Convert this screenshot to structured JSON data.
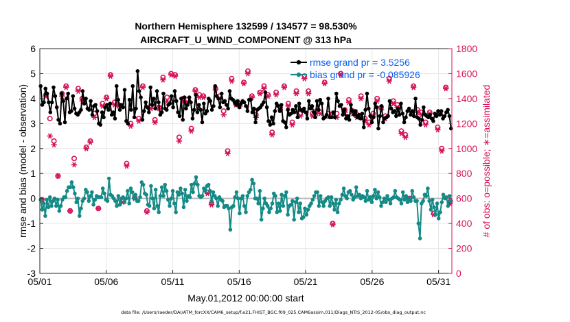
{
  "chart_data": {
    "type": "line",
    "title": "Northern Hemisphere 132599 / 134577 = 98.530%",
    "subtitle": "AIRCRAFT_U_WIND_COMPONENT @ 313 hPa",
    "xlabel": "May.01,2012 00:00:00 start",
    "ylabel_left": "rmse and bias (model - observation)",
    "ylabel_right": "# of obs: o=possible; ∗=assimilated",
    "footnote": "data file: /Users/raeder/DAI/ATM_forcXX/CAM6_setup/f.e21.FHIST_BGC.f09_025.CAM6assim.011/Diags_NTrS_2012-05/obs_diag_output.nc",
    "x_tick_labels": [
      "05/01",
      "05/06",
      "05/11",
      "05/16",
      "05/21",
      "05/26",
      "05/31"
    ],
    "x_tick_days": [
      0,
      5,
      10,
      15,
      20,
      25,
      30
    ],
    "xlim_days": [
      0,
      31
    ],
    "ylim_left": [
      -3,
      6
    ],
    "yticks_left": [
      "-3",
      "-2",
      "-1",
      "0",
      "1",
      "2",
      "3",
      "4",
      "5",
      "6"
    ],
    "ylim_right": [
      0,
      1800
    ],
    "yticks_right": [
      "0",
      "200",
      "400",
      "600",
      "800",
      "1000",
      "1200",
      "1400",
      "1600",
      "1800"
    ],
    "grid": true,
    "legend_position": "top-right",
    "colors": {
      "rmse": "#000000",
      "bias": "#138a86",
      "obs": "#d6135a",
      "legend_text": "#0a5ef0",
      "zero_line": "#b8b8b8"
    },
    "series": [
      {
        "name": "rmse grand pr = 3.5256",
        "axis": "left",
        "values": [
          4.5,
          3.75,
          3.85,
          4.4,
          4.2,
          3.85,
          3.45,
          3.85,
          4.45,
          4.1,
          3.65,
          3.15,
          3.0,
          4.2,
          3.9,
          3.05,
          4.0,
          4.2,
          3.45,
          3.5,
          4.1,
          3.6,
          3.4,
          3.35,
          3.45,
          3.55,
          4.3,
          3.8,
          4.0,
          3.6,
          3.55,
          3.9,
          3.35,
          3.7,
          3.75,
          3.5,
          3.0,
          2.95,
          3.45,
          3.25,
          3.65,
          3.75,
          3.55,
          3.8,
          3.35,
          3.45,
          3.2,
          4.5,
          3.95,
          3.55,
          3.75,
          3.65,
          4.35,
          3.1,
          3.0,
          3.95,
          3.55,
          4.5,
          3.25,
          3.6,
          5.1,
          4.3,
          4.05,
          3.15,
          3.5,
          3.85,
          3.65,
          3.45,
          4.45,
          3.75,
          4.0,
          3.6,
          4.3,
          3.85,
          3.35,
          3.45,
          4.2,
          3.6,
          3.55,
          3.75,
          3.8,
          4.1,
          3.65,
          4.3,
          3.9,
          3.45,
          3.3,
          4.0,
          3.15,
          4.05,
          3.6,
          3.75,
          4.05,
          3.85,
          3.2,
          3.55,
          4.15,
          3.45,
          3.75,
          3.55,
          3.05,
          3.8,
          3.4,
          3.5,
          4.0,
          3.9,
          3.55,
          3.7,
          4.5,
          4.1,
          4.0,
          3.65,
          4.2,
          3.85,
          3.9,
          3.75,
          3.6,
          4.3,
          4.0,
          3.95,
          3.85,
          3.75,
          3.9,
          3.65,
          3.8,
          3.9,
          3.85,
          3.7,
          3.5,
          3.95,
          3.95,
          3.45,
          3.6,
          3.05,
          3.55,
          3.6,
          3.65,
          3.75,
          3.85,
          4.25,
          3.65,
          3.1,
          2.95,
          3.25,
          3.0,
          3.5,
          3.8,
          3.7,
          3.5,
          3.75,
          3.1,
          3.05,
          2.85,
          3.55,
          3.35,
          3.4,
          3.55,
          3.45,
          3.7,
          3.25,
          3.8,
          3.55,
          3.5,
          3.6,
          3.45,
          3.2,
          3.9,
          3.6,
          3.7,
          3.45,
          3.25,
          3.9,
          3.55,
          3.95,
          3.8,
          3.2,
          3.25,
          3.35,
          4.0,
          3.25,
          3.25,
          3.45,
          3.25,
          4.2,
          3.9,
          3.7,
          3.75,
          3.35,
          3.55,
          3.2,
          3.3,
          3.15,
          3.75,
          3.5,
          3.35,
          3.5,
          3.25,
          3.35,
          3.2,
          3.4,
          2.85,
          3.55,
          4.2,
          3.6,
          3.3,
          3.05,
          3.25,
          3.8,
          3.65,
          2.8,
          3.3,
          3.7,
          3.05,
          3.2,
          3.25,
          3.3,
          3.9,
          3.6,
          3.45,
          3.5,
          3.3,
          3.6,
          3.35,
          3.8,
          3.4,
          3.05,
          3.25,
          3.5,
          3.6,
          3.35,
          3.5,
          3.3,
          4.0,
          3.25,
          3.2,
          2.95,
          3.15,
          3.65,
          3.35,
          3.3,
          3.25,
          3.35,
          3.2,
          3.1,
          3.4,
          3.3,
          3.5,
          3.35,
          3.5,
          3.2,
          3.3,
          3.45,
          3.55,
          3.3,
          2.8
        ]
      },
      {
        "name": "bias grand pr = -0.085926",
        "axis": "left",
        "values": [
          -0.05,
          -0.45,
          -0.2,
          -0.7,
          -0.05,
          -0.35,
          0.05,
          -0.3,
          -0.1,
          0.0,
          -0.3,
          -0.05,
          -0.5,
          -0.3,
          -0.05,
          0.05,
          0.05,
          0.3,
          0.45,
          0.45,
          0.65,
          0.45,
          0.2,
          -0.15,
          0.0,
          -0.7,
          -0.4,
          -0.1,
          0.0,
          0.35,
          0.25,
          -0.1,
          0.1,
          0.25,
          -0.25,
          -0.05,
          0.1,
          0.05,
          0.05,
          0.05,
          0.4,
          0.2,
          -0.05,
          -0.1,
          0.8,
          0.15,
          0.1,
          0.0,
          -0.1,
          -0.3,
          0.1,
          -0.25,
          0.0,
          0.05,
          -0.15,
          0.0,
          0.3,
          -0.2,
          0.4,
          0.25,
          0.0,
          0.15,
          -0.1,
          -0.1,
          0.05,
          0.65,
          0.55,
          0.2,
          0.15,
          -0.25,
          -0.3,
          0.5,
          0.0,
          -0.4,
          0.35,
          -0.3,
          -0.55,
          0.1,
          0.45,
          0.1,
          0.55,
          0.3,
          -0.05,
          -0.3,
          0.0,
          0.3,
          -0.2,
          -0.55,
          0.25,
          0.15,
          0.4,
          0.2,
          -0.35,
          0.35,
          -0.1,
          0.1,
          0.05,
          0.55,
          0.25,
          0.6,
          0.85,
          0.55,
          0.1,
          0.05,
          0.1,
          0.4,
          0.3,
          0.5,
          0.55,
          0.3,
          -0.1,
          0.25,
          0.1,
          0.0,
          -0.3,
          0.05,
          -0.05,
          -0.1,
          -0.35,
          -0.3,
          -0.3,
          -0.4,
          -1.25,
          -0.35,
          -0.3,
          0.05,
          0.25,
          0.0,
          -0.6,
          0.0,
          0.1,
          -0.3,
          -0.55,
          0.1,
          0.25,
          0.35,
          0.75,
          0.6,
          0.0,
          0.0,
          -0.2,
          0.3,
          -0.85,
          -0.4,
          0.0,
          -0.2,
          -0.3,
          -0.55,
          -0.4,
          -0.2,
          0.2,
          0.1,
          -0.55,
          -0.2,
          -0.5,
          0.15,
          -0.3,
          0.1,
          0.25,
          -0.65,
          -0.3,
          -0.25,
          -0.1,
          -0.85,
          -0.15,
          0.0,
          -0.55,
          -0.2,
          -0.8,
          -0.75,
          -0.4,
          -0.65,
          -0.45,
          -0.3,
          -0.2,
          -0.05,
          0.1,
          0.25,
          0.25,
          -0.3,
          0.1,
          -0.15,
          -0.3,
          -0.1,
          0.0,
          0.05,
          -0.3,
          0.05,
          -0.2,
          -0.45,
          -0.05,
          -0.55,
          -0.2,
          -0.05,
          0.15,
          0.4,
          0.1,
          0.0,
          0.25,
          0.3,
          0.15,
          -0.05,
          0.05,
          0.45,
          0.1,
          0.15,
          0.0,
          0.1,
          0.05,
          -0.1,
          0.3,
          -0.05,
          0.05,
          -0.15,
          0.1,
          0.35,
          0.0,
          0.25,
          0.05,
          -0.3,
          -0.15,
          0.0,
          -0.15,
          0.1,
          -0.05,
          -0.2,
          0.0,
          0.05,
          0.3,
          0.05,
          0.0,
          -0.05,
          -0.2,
          0.25,
          -0.05,
          0.1,
          -0.15,
          0.0,
          -0.1,
          0.3,
          0.05,
          -0.1,
          -0.1,
          -1.0,
          -1.6,
          -0.2,
          -0.1,
          0.15,
          0.1,
          0.4,
          -0.1,
          -0.45,
          -0.05,
          -0.35,
          -0.65,
          -0.2,
          -0.8,
          -0.55,
          -0.15,
          0.15,
          0.0,
          0.05,
          -0.3,
          0.1,
          -0.1
        ]
      },
      {
        "name": "obs possible (o)",
        "axis": "right",
        "values": [
          590,
          1430,
          1240,
          1060,
          780,
          1440,
          1500,
          500,
          920,
          1480,
          1400,
          1010,
          1060,
          1280,
          520,
          1360,
          1410,
          1590,
          1370,
          1350,
          580,
          880,
          1200,
          610,
          1240,
          1500,
          500,
          1340,
          1230,
          1330,
          1570,
          1410,
          1600,
          1590,
          1090,
          1400,
          1390,
          1160,
          1470,
          1430,
          1420,
          650,
          560,
          1480,
          1420,
          1300,
          980,
          1560,
          1370,
          1360,
          1530,
          1620,
          1420,
          1270,
          1450,
          1500,
          1430,
          1130,
          1450,
          1330,
          1500,
          1360,
          1210,
          1460,
          1280,
          1580,
          1460,
          1280,
          1300,
          1290,
          1530,
          1280,
          400,
          1280,
          1600,
          1310,
          1390,
          1300,
          1270,
          1420,
          1240,
          1210,
          1280,
          1400,
          1330,
          1260,
          1560,
          1380,
          1350,
          1140,
          1110,
          600,
          1500,
          1310,
          1290,
          1210,
          1290,
          480,
          1170,
          1000,
          1490,
          570
        ]
      },
      {
        "name": "obs assimilated (∗)",
        "axis": "right",
        "values": [
          590,
          1420,
          1100,
          1030,
          780,
          1420,
          1490,
          500,
          870,
          1460,
          1380,
          1000,
          1050,
          1250,
          520,
          1340,
          1400,
          1580,
          1350,
          1340,
          570,
          860,
          1180,
          600,
          1220,
          1490,
          490,
          1320,
          1210,
          1320,
          1550,
          1380,
          1590,
          1580,
          1060,
          1380,
          1370,
          1140,
          1460,
          1410,
          1410,
          640,
          550,
          1470,
          1400,
          1270,
          960,
          1540,
          1350,
          1340,
          1520,
          1600,
          1410,
          1250,
          1440,
          1480,
          1420,
          1110,
          1430,
          1310,
          1490,
          1340,
          1190,
          1440,
          1260,
          1560,
          1440,
          1260,
          1280,
          1280,
          1520,
          1260,
          390,
          1250,
          1590,
          1290,
          1370,
          1280,
          1250,
          1400,
          1220,
          1190,
          1260,
          1380,
          1310,
          1240,
          1540,
          1360,
          1330,
          1120,
          1090,
          590,
          1490,
          1290,
          1270,
          1190,
          1280,
          470,
          1150,
          980,
          1480,
          560
        ]
      }
    ]
  }
}
